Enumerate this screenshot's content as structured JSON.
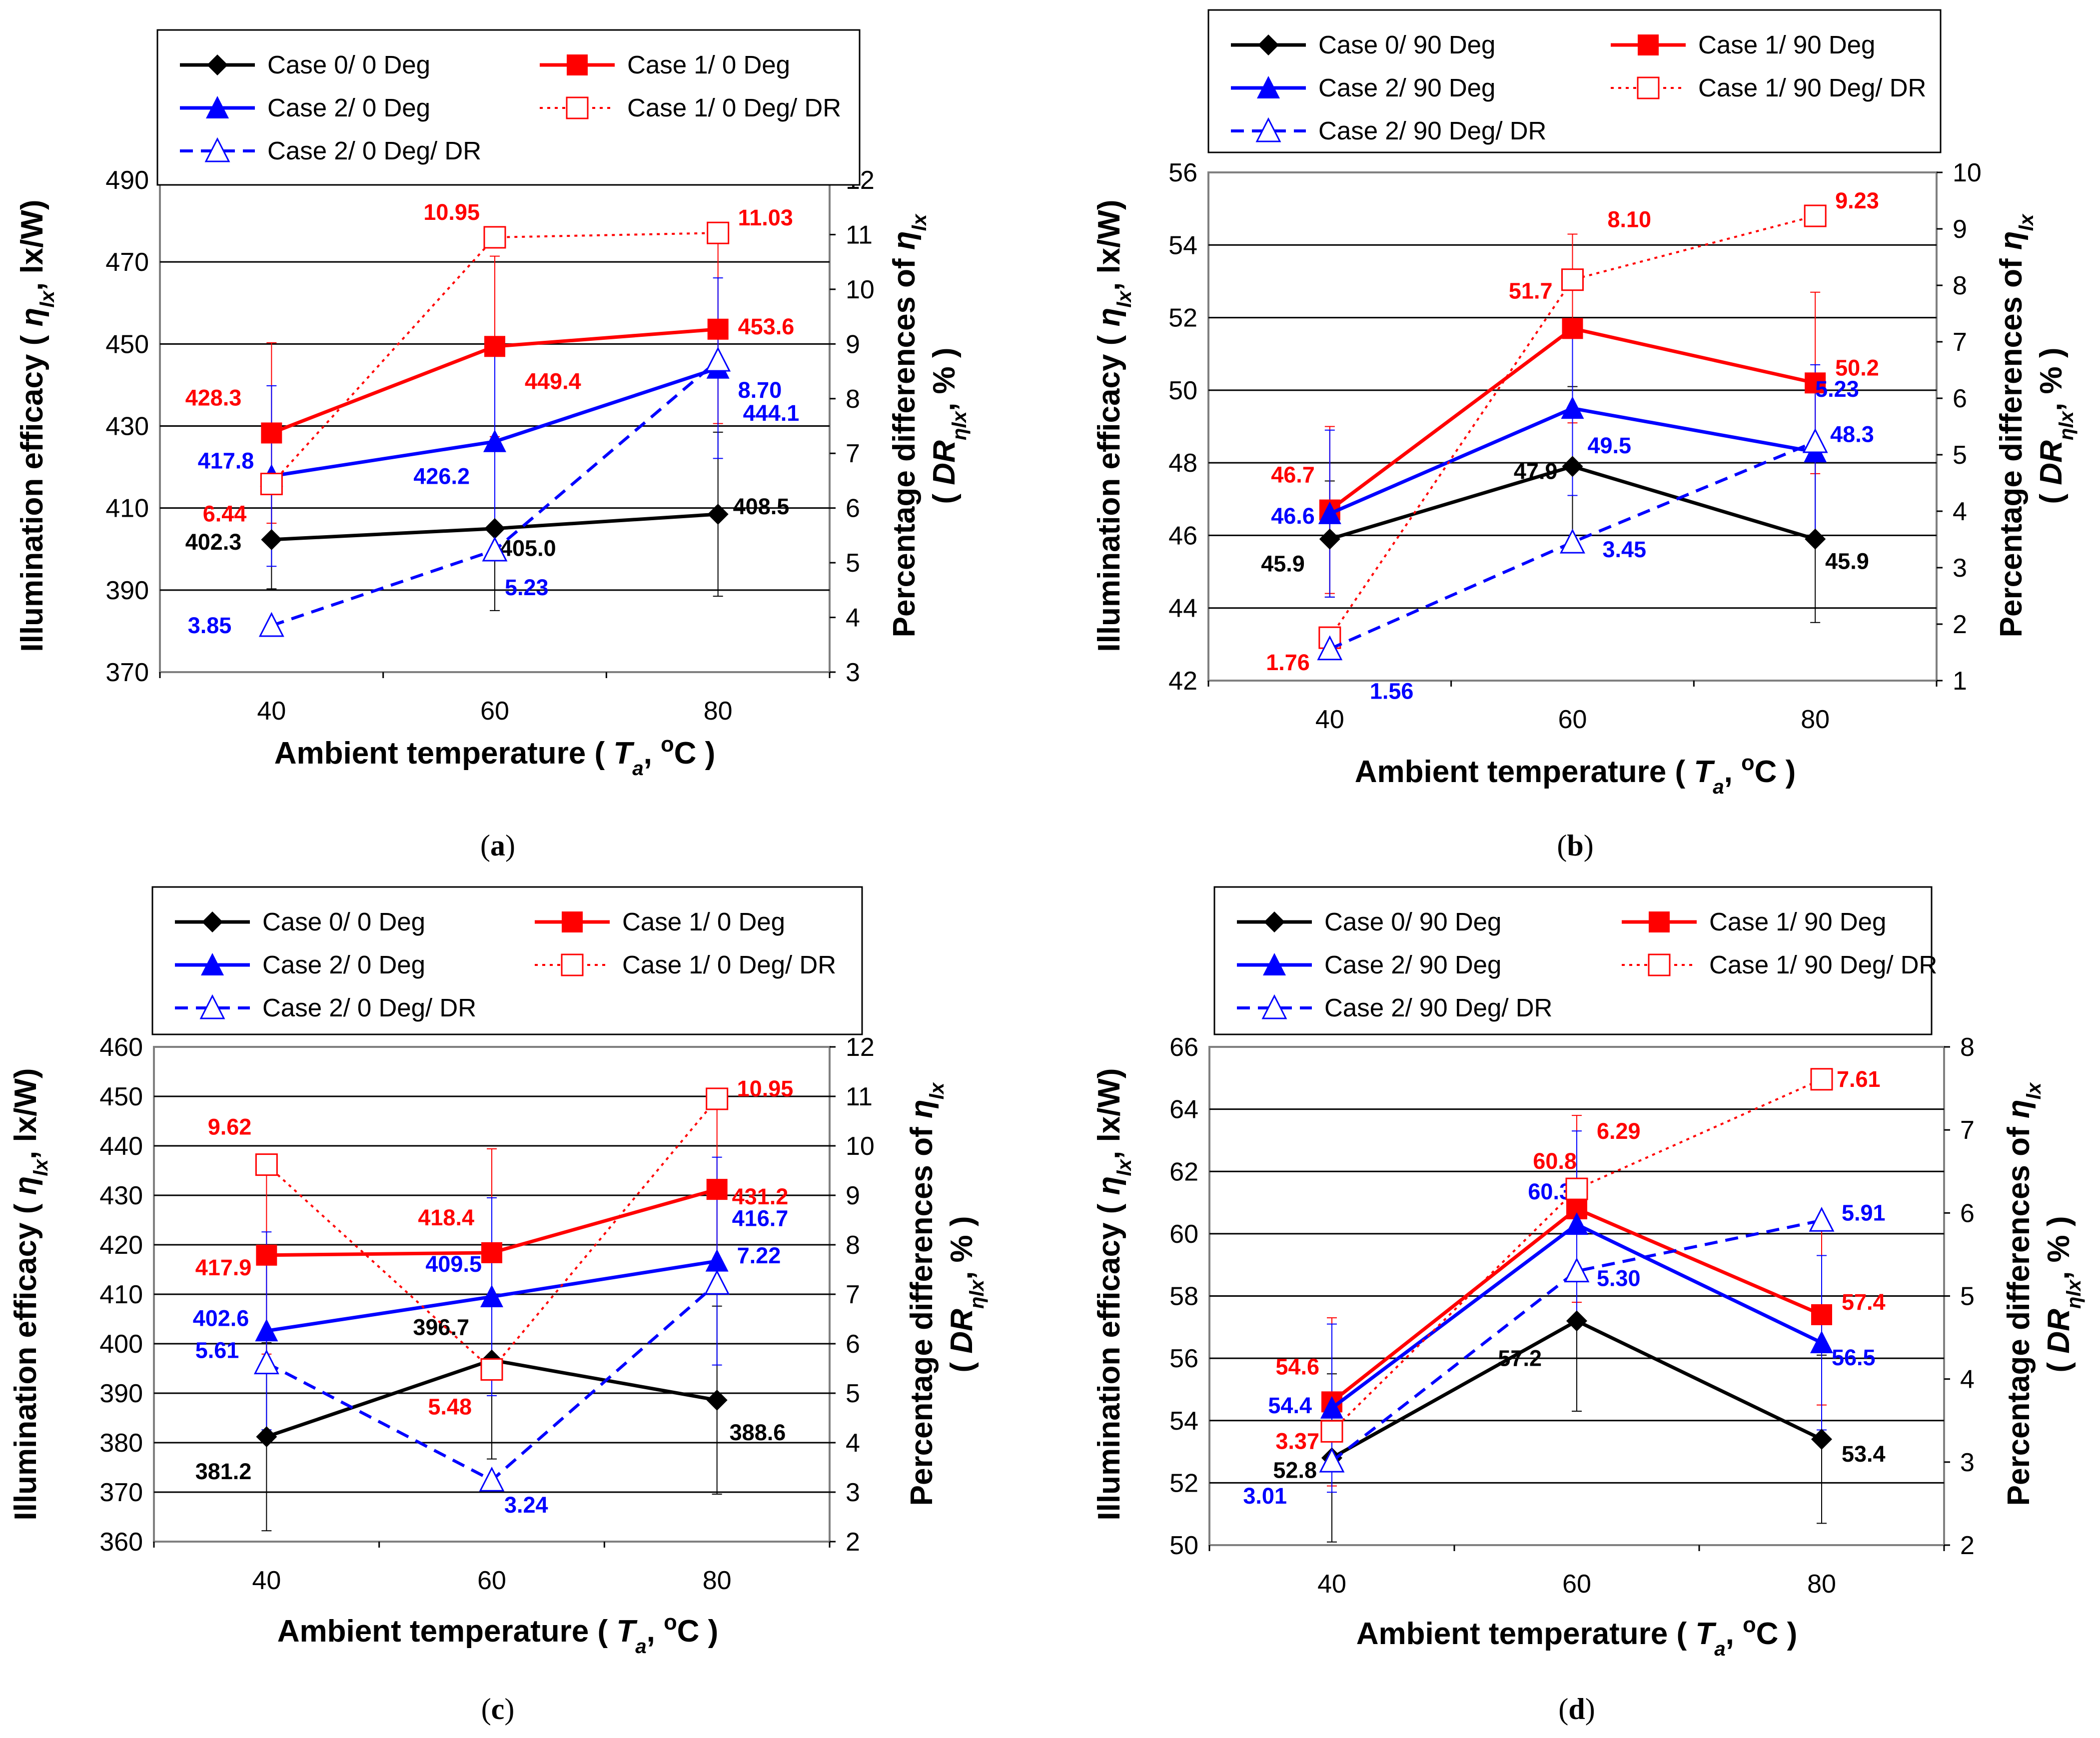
{
  "colors": {
    "case0": "#000000",
    "case1": "#ff0000",
    "case2": "#0000ff",
    "grid": "#000000",
    "frame": "#808080"
  },
  "chart_data": [
    {
      "id": "a",
      "type": "line",
      "panel_label": "(a)",
      "xlabel": "Ambient temperature ( T_a, oC )",
      "ylabel": "Illumination efficacy ( η_lx, lx/W)",
      "y2label_line1": "Percentage differences of η_lx",
      "y2label_line2": "( DR_ηlx, % )",
      "categories": [
        "40",
        "60",
        "80"
      ],
      "ylim": [
        370,
        490
      ],
      "yticks": [
        "370",
        "390",
        "410",
        "430",
        "450",
        "470",
        "490"
      ],
      "y2lim": [
        3,
        12
      ],
      "y2ticks": [
        "3",
        "4",
        "5",
        "6",
        "7",
        "8",
        "9",
        "10",
        "11",
        "12"
      ],
      "legend": [
        "Case 0/ 0 Deg",
        "Case 1/ 0 Deg",
        "Case 2/ 0 Deg",
        "Case 1/ 0 Deg/ DR",
        "Case 2/ 0 Deg/ DR"
      ],
      "series": [
        {
          "name": "Case 0/ 0 Deg",
          "color": "#000000",
          "marker": "diamond",
          "dash": "solid",
          "axis": "left",
          "values": [
            402.3,
            405.0,
            408.5
          ],
          "labels": [
            "402.3",
            "405.0",
            "408.5"
          ],
          "errors": [
            12,
            20,
            20
          ]
        },
        {
          "name": "Case 1/ 0 Deg",
          "color": "#ff0000",
          "marker": "square",
          "dash": "solid",
          "axis": "left",
          "values": [
            428.3,
            449.4,
            453.6
          ],
          "labels": [
            "428.3",
            "449.4",
            "453.6"
          ],
          "errors": [
            22,
            22,
            23
          ]
        },
        {
          "name": "Case 2/ 0 Deg",
          "color": "#0000ff",
          "marker": "triangle",
          "dash": "solid",
          "axis": "left",
          "values": [
            417.8,
            426.2,
            444.1
          ],
          "labels": [
            "417.8",
            "426.2",
            "444.1"
          ],
          "errors": [
            22,
            22,
            22
          ]
        },
        {
          "name": "Case 1/ 0 Deg/ DR",
          "color": "#ff0000",
          "marker": "square-open",
          "dash": "dot",
          "axis": "right",
          "values": [
            6.44,
            10.95,
            11.03
          ],
          "labels": [
            "6.44",
            "10.95",
            "11.03"
          ]
        },
        {
          "name": "Case 2/ 0 Deg/ DR",
          "color": "#0000ff",
          "marker": "triangle-open",
          "dash": "dash",
          "axis": "right",
          "values": [
            3.85,
            5.23,
            8.7
          ],
          "labels": [
            "3.85",
            "5.23",
            "8.70"
          ]
        }
      ]
    },
    {
      "id": "b",
      "type": "line",
      "panel_label": "(b)",
      "xlabel": "Ambient temperature ( T_a, oC )",
      "ylabel": "Illumination efficacy ( η_lx, lx/W)",
      "y2label_line1": "Percentage differences of η_lx",
      "y2label_line2": "( DR_ηlx, % )",
      "categories": [
        "40",
        "60",
        "80"
      ],
      "ylim": [
        42,
        56
      ],
      "yticks": [
        "42",
        "44",
        "46",
        "48",
        "50",
        "52",
        "54",
        "56"
      ],
      "y2lim": [
        1,
        10
      ],
      "y2ticks": [
        "1",
        "2",
        "3",
        "4",
        "5",
        "6",
        "7",
        "8",
        "9",
        "10"
      ],
      "legend": [
        "Case 0/ 90 Deg",
        "Case 1/ 90 Deg",
        "Case 2/ 90 Deg",
        "Case 1/ 90 Deg/ DR",
        "Case 2/ 90 Deg/ DR"
      ],
      "series": [
        {
          "name": "Case 0/ 90 Deg",
          "color": "#000000",
          "marker": "diamond",
          "dash": "solid",
          "axis": "left",
          "values": [
            45.9,
            47.9,
            45.9
          ],
          "labels": [
            "45.9",
            "47.9",
            "45.9"
          ],
          "errors": [
            1.6,
            2.2,
            2.3
          ]
        },
        {
          "name": "Case 1/ 90 Deg",
          "color": "#ff0000",
          "marker": "square",
          "dash": "solid",
          "axis": "left",
          "values": [
            46.7,
            51.7,
            50.2
          ],
          "labels": [
            "46.7",
            "51.7",
            "50.2"
          ],
          "errors": [
            2.3,
            2.6,
            2.5
          ]
        },
        {
          "name": "Case 2/ 90 Deg",
          "color": "#0000ff",
          "marker": "triangle",
          "dash": "solid",
          "axis": "left",
          "values": [
            46.6,
            49.5,
            48.3
          ],
          "labels": [
            "46.6",
            "49.5",
            "48.3"
          ],
          "errors": [
            2.3,
            2.4,
            2.4
          ]
        },
        {
          "name": "Case 1/ 90 Deg/ DR",
          "color": "#ff0000",
          "marker": "square-open",
          "dash": "dot",
          "axis": "right",
          "values": [
            1.76,
            8.1,
            9.23
          ],
          "labels": [
            "1.76",
            "8.10",
            "9.23"
          ]
        },
        {
          "name": "Case 2/ 90 Deg/ DR",
          "color": "#0000ff",
          "marker": "triangle-open",
          "dash": "dash",
          "axis": "right",
          "values": [
            1.56,
            3.45,
            5.23
          ],
          "labels": [
            "1.56",
            "3.45",
            "5.23"
          ]
        }
      ]
    },
    {
      "id": "c",
      "type": "line",
      "panel_label": "(c)",
      "xlabel": "Ambient temperature ( T_a, oC )",
      "ylabel": "Illumination efficacy ( η_lx, lx/W)",
      "y2label_line1": "Percentage differences of η_lx",
      "y2label_line2": "( DR_ηlx, % )",
      "categories": [
        "40",
        "60",
        "80"
      ],
      "ylim": [
        360,
        460
      ],
      "yticks": [
        "360",
        "370",
        "380",
        "390",
        "400",
        "410",
        "420",
        "430",
        "440",
        "450",
        "460"
      ],
      "y2lim": [
        2,
        12
      ],
      "y2ticks": [
        "2",
        "3",
        "4",
        "5",
        "6",
        "7",
        "8",
        "9",
        "10",
        "11",
        "12"
      ],
      "legend": [
        "Case 0/ 0 Deg",
        "Case 1/ 0 Deg",
        "Case 2/ 0 Deg",
        "Case 1/ 0 Deg/ DR",
        "Case 2/ 0 Deg/ DR"
      ],
      "series": [
        {
          "name": "Case 0/ 0 Deg",
          "color": "#000000",
          "marker": "diamond",
          "dash": "solid",
          "axis": "left",
          "values": [
            381.2,
            396.7,
            388.6
          ],
          "labels": [
            "381.2",
            "396.7",
            "388.6"
          ],
          "errors": [
            19,
            20,
            19
          ]
        },
        {
          "name": "Case 1/ 0 Deg",
          "color": "#ff0000",
          "marker": "square",
          "dash": "solid",
          "axis": "left",
          "values": [
            417.9,
            418.4,
            431.2
          ],
          "labels": [
            "417.9",
            "418.4",
            "431.2"
          ],
          "errors": [
            20,
            21,
            20
          ]
        },
        {
          "name": "Case 2/ 0 Deg",
          "color": "#0000ff",
          "marker": "triangle",
          "dash": "solid",
          "axis": "left",
          "values": [
            402.6,
            409.5,
            416.7
          ],
          "labels": [
            "402.6",
            "409.5",
            "416.7"
          ],
          "errors": [
            20,
            20,
            21
          ]
        },
        {
          "name": "Case 1/ 0 Deg/ DR",
          "color": "#ff0000",
          "marker": "square-open",
          "dash": "dot",
          "axis": "right",
          "values": [
            9.62,
            5.48,
            10.95
          ],
          "labels": [
            "9.62",
            "5.48",
            "10.95"
          ]
        },
        {
          "name": "Case 2/ 0 Deg/ DR",
          "color": "#0000ff",
          "marker": "triangle-open",
          "dash": "dash",
          "axis": "right",
          "values": [
            5.61,
            3.24,
            7.22
          ],
          "labels": [
            "5.61",
            "3.24",
            "7.22"
          ]
        }
      ]
    },
    {
      "id": "d",
      "type": "line",
      "panel_label": "(d)",
      "xlabel": "Ambient temperature ( T_a, oC )",
      "ylabel": "Illumination efficacy ( η_lx, lx/W)",
      "y2label_line1": "Percentage differences of η_lx",
      "y2label_line2": "( DR_ηlx, % )",
      "categories": [
        "40",
        "60",
        "80"
      ],
      "ylim": [
        50,
        66
      ],
      "yticks": [
        "50",
        "52",
        "54",
        "56",
        "58",
        "60",
        "62",
        "64",
        "66"
      ],
      "y2lim": [
        2,
        8
      ],
      "y2ticks": [
        "2",
        "3",
        "4",
        "5",
        "6",
        "7",
        "8"
      ],
      "legend": [
        "Case 0/ 90 Deg",
        "Case 1/ 90 Deg",
        "Case 2/ 90 Deg",
        "Case 1/ 90 Deg/ DR",
        "Case 2/ 90 Deg/ DR"
      ],
      "series": [
        {
          "name": "Case 0/ 90 Deg",
          "color": "#000000",
          "marker": "diamond",
          "dash": "solid",
          "axis": "left",
          "values": [
            52.8,
            57.2,
            53.4
          ],
          "labels": [
            "52.8",
            "57.2",
            "53.4"
          ],
          "errors": [
            2.7,
            2.9,
            2.7
          ]
        },
        {
          "name": "Case 1/ 90 Deg",
          "color": "#ff0000",
          "marker": "square",
          "dash": "solid",
          "axis": "left",
          "values": [
            54.6,
            60.8,
            57.4
          ],
          "labels": [
            "54.6",
            "60.8",
            "57.4"
          ],
          "errors": [
            2.7,
            3.0,
            2.9
          ]
        },
        {
          "name": "Case 2/ 90 Deg",
          "color": "#0000ff",
          "marker": "triangle",
          "dash": "solid",
          "axis": "left",
          "values": [
            54.4,
            60.3,
            56.5
          ],
          "labels": [
            "54.4",
            "60.3",
            "56.5"
          ],
          "errors": [
            2.7,
            3.0,
            2.8
          ]
        },
        {
          "name": "Case 1/ 90 Deg/ DR",
          "color": "#ff0000",
          "marker": "square-open",
          "dash": "dot",
          "axis": "right",
          "values": [
            3.37,
            6.29,
            7.61
          ],
          "labels": [
            "3.37",
            "6.29",
            "7.61"
          ]
        },
        {
          "name": "Case 2/ 90 Deg/ DR",
          "color": "#0000ff",
          "marker": "triangle-open",
          "dash": "dash",
          "axis": "right",
          "values": [
            3.01,
            5.3,
            5.91
          ],
          "labels": [
            "3.01",
            "5.30",
            "5.91"
          ]
        }
      ]
    }
  ]
}
